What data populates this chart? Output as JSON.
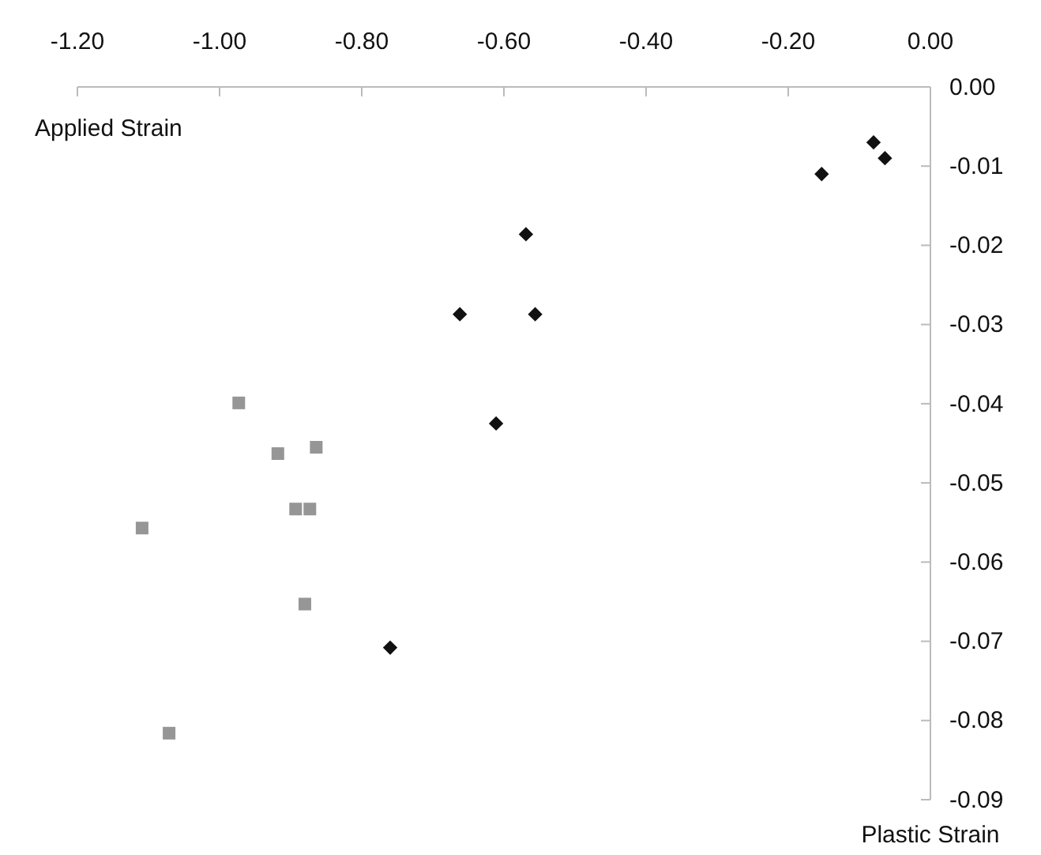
{
  "chart_data": {
    "type": "scatter",
    "xlabel": "Plastic Strain",
    "ylabel": "Applied Strain",
    "xlim": [
      -1.2,
      0
    ],
    "ylim": [
      -0.09,
      0
    ],
    "xticks": [
      {
        "value": -1.2,
        "label": "-1.20"
      },
      {
        "value": -1,
        "label": "-1.00"
      },
      {
        "value": -0.8,
        "label": "-0.80"
      },
      {
        "value": -0.6,
        "label": "-0.60"
      },
      {
        "value": -0.4,
        "label": "-0.40"
      },
      {
        "value": -0.2,
        "label": "-0.20"
      },
      {
        "value": 0,
        "label": "0.00"
      }
    ],
    "yticks": [
      {
        "value": 0,
        "label": "0.00"
      },
      {
        "value": -0.01,
        "label": "-0.01"
      },
      {
        "value": -0.02,
        "label": "-0.02"
      },
      {
        "value": -0.03,
        "label": "-0.03"
      },
      {
        "value": -0.04,
        "label": "-0.04"
      },
      {
        "value": -0.05,
        "label": "-0.05"
      },
      {
        "value": -0.06,
        "label": "-0.06"
      },
      {
        "value": -0.07,
        "label": "-0.07"
      },
      {
        "value": -0.08,
        "label": "-0.08"
      },
      {
        "value": -0.09,
        "label": "-0.09"
      }
    ],
    "grid": false,
    "series": [
      {
        "color": "#111111",
        "marker": "diamond",
        "x": [
          -0.08,
          -0.064,
          -0.153,
          -0.569,
          -0.662,
          -0.556,
          -0.611,
          -0.76
        ],
        "values": [
          -0.007,
          -0.009,
          -0.011,
          -0.0186,
          -0.0287,
          -0.0287,
          -0.0425,
          -0.0708
        ]
      },
      {
        "color": "#969696",
        "marker": "square",
        "x": [
          -0.973,
          -0.918,
          -0.864,
          -0.893,
          -0.873,
          -1.109,
          -0.88,
          -1.071
        ],
        "values": [
          -0.0399,
          -0.0463,
          -0.0455,
          -0.0533,
          -0.0533,
          -0.0557,
          -0.0653,
          -0.0816
        ]
      }
    ]
  }
}
